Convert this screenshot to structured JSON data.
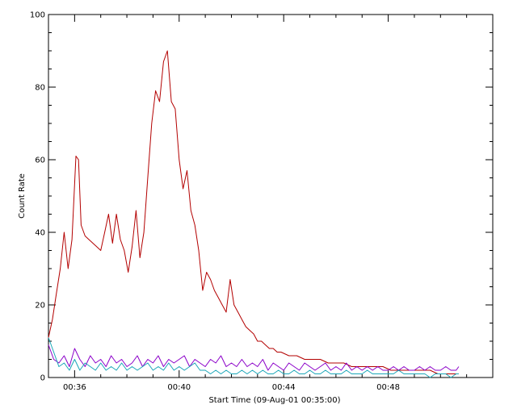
{
  "chart_data": {
    "type": "line",
    "title": "",
    "xlabel": "Start Time (09-Aug-01 00:35:00)",
    "ylabel": "Count Rate",
    "xlim": [
      35.0,
      52.0
    ],
    "ylim": [
      0,
      100
    ],
    "x_ticks": [
      36,
      40,
      44,
      48
    ],
    "x_tick_labels": [
      "00:36",
      "00:40",
      "00:44",
      "00:48"
    ],
    "y_ticks": [
      0,
      20,
      40,
      60,
      80,
      100
    ],
    "y_tick_labels": [
      "0",
      "20",
      "40",
      "60",
      "80",
      "100"
    ],
    "grid": false,
    "x_unit": "minutes after 00:00",
    "series": [
      {
        "color": "#b30000",
        "x": [
          35.0,
          35.15,
          35.3,
          35.45,
          35.6,
          35.75,
          35.9,
          36.05,
          36.15,
          36.25,
          36.4,
          36.55,
          36.7,
          36.85,
          37.0,
          37.15,
          37.3,
          37.45,
          37.6,
          37.75,
          37.9,
          38.05,
          38.2,
          38.35,
          38.5,
          38.65,
          38.8,
          38.95,
          39.1,
          39.25,
          39.4,
          39.55,
          39.7,
          39.85,
          40.0,
          40.15,
          40.3,
          40.45,
          40.6,
          40.75,
          40.9,
          41.05,
          41.2,
          41.35,
          41.5,
          41.65,
          41.8,
          41.95,
          42.1,
          42.25,
          42.4,
          42.55,
          42.7,
          42.85,
          43.0,
          43.15,
          43.3,
          43.45,
          43.6,
          43.75,
          43.9,
          44.2,
          44.5,
          44.8,
          45.1,
          45.4,
          45.7,
          46.0,
          46.3,
          46.6,
          46.9,
          47.2,
          47.5,
          47.8,
          48.1,
          48.4,
          48.7,
          49.0,
          49.3,
          49.6,
          49.9,
          50.2,
          50.5,
          50.7
        ],
        "values": [
          11,
          16,
          23,
          30,
          40,
          30,
          38,
          61,
          60,
          42,
          39,
          38,
          37,
          36,
          35,
          40,
          45,
          37,
          45,
          38,
          35,
          29,
          36,
          46,
          33,
          40,
          55,
          70,
          79,
          76,
          87,
          90,
          76,
          74,
          60,
          52,
          57,
          46,
          42,
          35,
          24,
          29,
          27,
          24,
          22,
          20,
          18,
          27,
          20,
          18,
          16,
          14,
          13,
          12,
          10,
          10,
          9,
          8,
          8,
          7,
          7,
          6,
          6,
          5,
          5,
          5,
          4,
          4,
          4,
          3,
          3,
          3,
          3,
          3,
          2,
          2,
          2,
          2,
          2,
          2,
          1,
          1,
          1,
          1
        ]
      },
      {
        "color": "#8b00c9",
        "x": [
          35.0,
          35.2,
          35.4,
          35.6,
          35.8,
          36.0,
          36.2,
          36.4,
          36.6,
          36.8,
          37.0,
          37.2,
          37.4,
          37.6,
          37.8,
          38.0,
          38.2,
          38.4,
          38.6,
          38.8,
          39.0,
          39.2,
          39.4,
          39.6,
          39.8,
          40.0,
          40.2,
          40.4,
          40.6,
          40.8,
          41.0,
          41.2,
          41.4,
          41.6,
          41.8,
          42.0,
          42.2,
          42.4,
          42.6,
          42.8,
          43.0,
          43.2,
          43.4,
          43.6,
          43.8,
          44.0,
          44.2,
          44.4,
          44.6,
          44.8,
          45.0,
          45.2,
          45.4,
          45.6,
          45.8,
          46.0,
          46.2,
          46.4,
          46.6,
          46.8,
          47.0,
          47.2,
          47.4,
          47.6,
          47.8,
          48.0,
          48.2,
          48.4,
          48.6,
          48.8,
          49.0,
          49.2,
          49.4,
          49.6,
          49.8,
          50.0,
          50.2,
          50.4,
          50.6,
          50.7
        ],
        "values": [
          9,
          5,
          4,
          6,
          3,
          8,
          5,
          3,
          6,
          4,
          5,
          3,
          6,
          4,
          5,
          3,
          4,
          6,
          3,
          5,
          4,
          6,
          3,
          5,
          4,
          5,
          6,
          3,
          5,
          4,
          3,
          5,
          4,
          6,
          3,
          4,
          3,
          5,
          3,
          4,
          3,
          5,
          2,
          4,
          3,
          2,
          4,
          3,
          2,
          4,
          3,
          2,
          3,
          4,
          2,
          3,
          2,
          4,
          2,
          3,
          2,
          3,
          2,
          3,
          2,
          2,
          3,
          2,
          3,
          2,
          2,
          3,
          2,
          3,
          2,
          2,
          3,
          2,
          2,
          3
        ]
      },
      {
        "color": "#1aa6b8",
        "x": [
          35.0,
          35.2,
          35.4,
          35.6,
          35.8,
          36.0,
          36.2,
          36.4,
          36.6,
          36.8,
          37.0,
          37.2,
          37.4,
          37.6,
          37.8,
          38.0,
          38.2,
          38.4,
          38.6,
          38.8,
          39.0,
          39.2,
          39.4,
          39.6,
          39.8,
          40.0,
          40.2,
          40.4,
          40.6,
          40.8,
          41.0,
          41.2,
          41.4,
          41.6,
          41.8,
          42.0,
          42.2,
          42.4,
          42.6,
          42.8,
          43.0,
          43.2,
          43.4,
          43.6,
          43.8,
          44.0,
          44.2,
          44.4,
          44.6,
          44.8,
          45.0,
          45.2,
          45.4,
          45.6,
          45.8,
          46.0,
          46.2,
          46.4,
          46.6,
          46.8,
          47.0,
          47.2,
          47.4,
          47.6,
          47.8,
          48.0,
          48.2,
          48.4,
          48.6,
          48.8,
          49.0,
          49.2,
          49.4,
          49.6,
          49.8,
          50.0,
          50.2,
          50.4,
          50.6,
          50.7
        ],
        "values": [
          11,
          7,
          3,
          4,
          2,
          5,
          2,
          4,
          3,
          2,
          4,
          2,
          3,
          2,
          4,
          2,
          3,
          2,
          3,
          4,
          2,
          3,
          2,
          4,
          2,
          3,
          2,
          3,
          4,
          2,
          2,
          1,
          2,
          1,
          2,
          1,
          1,
          2,
          1,
          2,
          1,
          2,
          1,
          1,
          2,
          1,
          1,
          2,
          1,
          1,
          2,
          1,
          1,
          2,
          1,
          1,
          1,
          2,
          1,
          1,
          1,
          2,
          1,
          1,
          1,
          1,
          1,
          2,
          1,
          1,
          1,
          1,
          1,
          0,
          1,
          1,
          1,
          0,
          1,
          1
        ]
      }
    ]
  }
}
